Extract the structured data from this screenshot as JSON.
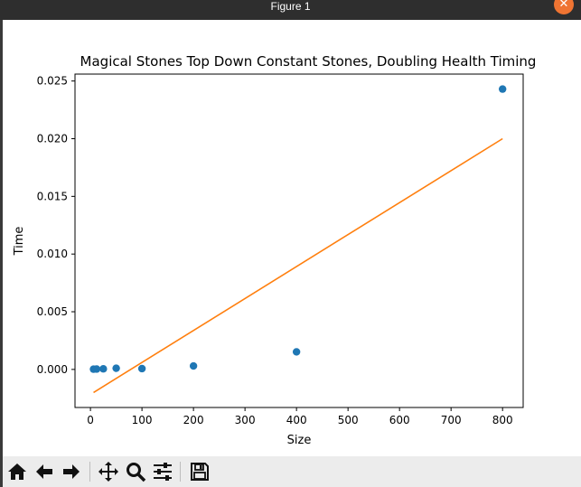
{
  "window": {
    "title": "Figure 1",
    "close_glyph": "✕"
  },
  "toolbar": {
    "buttons": [
      {
        "name": "home-button",
        "icon": "home-icon"
      },
      {
        "name": "back-button",
        "icon": "arrow-left-icon"
      },
      {
        "name": "forward-button",
        "icon": "arrow-right-icon"
      },
      {
        "name": "pan-button",
        "icon": "move-icon"
      },
      {
        "name": "zoom-button",
        "icon": "magnifier-icon"
      },
      {
        "name": "configure-subplots-button",
        "icon": "sliders-icon"
      },
      {
        "name": "save-button",
        "icon": "floppy-disk-icon"
      }
    ]
  },
  "chart_data": {
    "type": "scatter",
    "title": "Magical Stones Top Down Constant Stones, Doubling Health Timing",
    "xlabel": "Size",
    "ylabel": "Time",
    "xlim": [
      -30,
      840
    ],
    "ylim": [
      -0.0033,
      0.0256
    ],
    "xticks": [
      0,
      100,
      200,
      300,
      400,
      500,
      600,
      700,
      800
    ],
    "yticks": [
      0.0,
      0.005,
      0.01,
      0.015,
      0.02,
      0.025
    ],
    "ytick_labels": [
      "0.000",
      "0.005",
      "0.010",
      "0.015",
      "0.020",
      "0.025"
    ],
    "grid": false,
    "series": [
      {
        "kind": "scatter",
        "color": "#1f77b4",
        "points": [
          [
            6,
            2e-05
          ],
          [
            12,
            3e-05
          ],
          [
            25,
            5e-05
          ],
          [
            50,
            0.0001
          ],
          [
            100,
            7e-05
          ],
          [
            200,
            0.0003
          ],
          [
            400,
            0.00152
          ],
          [
            800,
            0.0243
          ]
        ]
      },
      {
        "kind": "line",
        "color": "#ff7f0e",
        "points": [
          [
            6,
            -0.002
          ],
          [
            800,
            0.02
          ]
        ]
      }
    ]
  }
}
